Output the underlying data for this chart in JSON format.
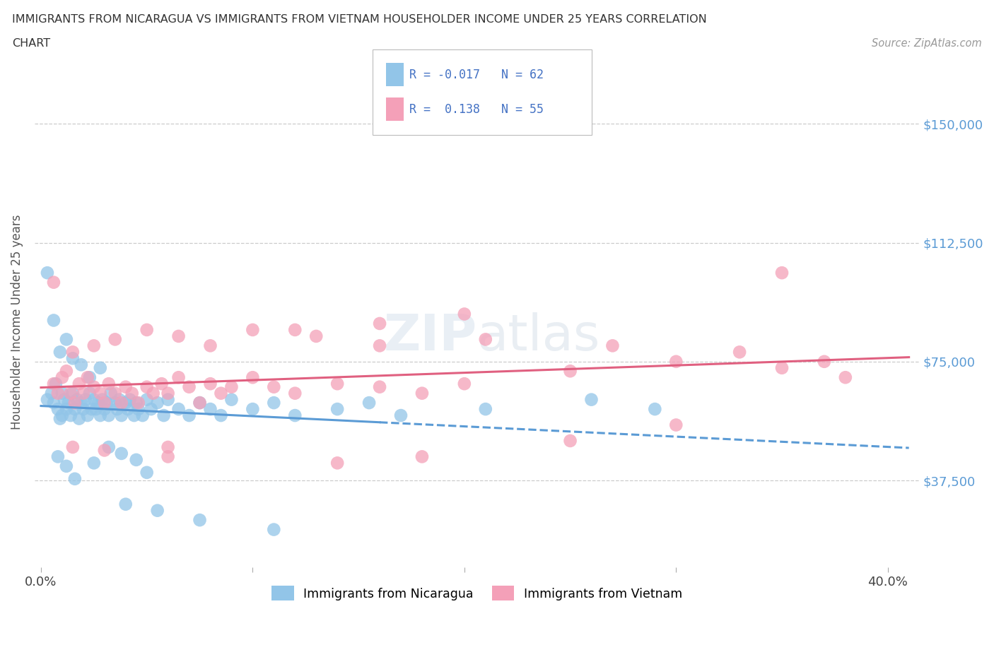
{
  "title_line1": "IMMIGRANTS FROM NICARAGUA VS IMMIGRANTS FROM VIETNAM HOUSEHOLDER INCOME UNDER 25 YEARS CORRELATION",
  "title_line2": "CHART",
  "source_text": "Source: ZipAtlas.com",
  "ylabel": "Householder Income Under 25 years",
  "xlim": [
    -0.003,
    0.415
  ],
  "ylim": [
    10000,
    165000
  ],
  "y_ticks": [
    37500,
    75000,
    112500,
    150000
  ],
  "y_tick_labels": [
    "$37,500",
    "$75,000",
    "$112,500",
    "$150,000"
  ],
  "x_ticks": [
    0.0,
    0.1,
    0.2,
    0.3,
    0.4
  ],
  "x_tick_labels": [
    "0.0%",
    "",
    "",
    "",
    "40.0%"
  ],
  "nicaragua_color": "#92C5E8",
  "vietnam_color": "#F4A0B8",
  "trendline_nicaragua_color": "#5B9BD5",
  "trendline_vietnam_color": "#E06080",
  "nicaragua_x": [
    0.003,
    0.005,
    0.006,
    0.007,
    0.008,
    0.009,
    0.01,
    0.01,
    0.011,
    0.012,
    0.013,
    0.014,
    0.015,
    0.016,
    0.017,
    0.018,
    0.019,
    0.02,
    0.021,
    0.022,
    0.023,
    0.024,
    0.025,
    0.026,
    0.027,
    0.028,
    0.029,
    0.03,
    0.031,
    0.032,
    0.033,
    0.035,
    0.036,
    0.037,
    0.038,
    0.04,
    0.041,
    0.042,
    0.044,
    0.045,
    0.046,
    0.048,
    0.05,
    0.052,
    0.055,
    0.058,
    0.06,
    0.065,
    0.07,
    0.075,
    0.08,
    0.085,
    0.09,
    0.1,
    0.11,
    0.12,
    0.14,
    0.155,
    0.17,
    0.21,
    0.26,
    0.29
  ],
  "nicaragua_y": [
    63000,
    65000,
    62000,
    68000,
    60000,
    57000,
    65000,
    58000,
    63000,
    60000,
    62000,
    58000,
    65000,
    60000,
    63000,
    57000,
    62000,
    60000,
    63000,
    58000,
    65000,
    60000,
    63000,
    60000,
    62000,
    58000,
    63000,
    60000,
    62000,
    58000,
    65000,
    62000,
    60000,
    63000,
    58000,
    62000,
    60000,
    63000,
    58000,
    62000,
    60000,
    58000,
    63000,
    60000,
    62000,
    58000,
    63000,
    60000,
    58000,
    62000,
    60000,
    58000,
    63000,
    60000,
    62000,
    58000,
    60000,
    62000,
    58000,
    60000,
    63000,
    60000
  ],
  "nicaragua_y_outliers": [
    103000,
    88000,
    78000,
    82000,
    76000,
    74000,
    70000,
    73000,
    45000,
    42000,
    38000,
    30000,
    28000,
    25000,
    22000,
    43000,
    48000,
    46000,
    44000,
    40000
  ],
  "nicaragua_x_outliers": [
    0.003,
    0.006,
    0.009,
    0.012,
    0.015,
    0.019,
    0.023,
    0.028,
    0.008,
    0.012,
    0.016,
    0.04,
    0.055,
    0.075,
    0.11,
    0.025,
    0.032,
    0.038,
    0.045,
    0.05
  ],
  "vietnam_x": [
    0.006,
    0.008,
    0.01,
    0.012,
    0.014,
    0.016,
    0.018,
    0.02,
    0.022,
    0.025,
    0.028,
    0.03,
    0.032,
    0.035,
    0.038,
    0.04,
    0.043,
    0.046,
    0.05,
    0.053,
    0.057,
    0.06,
    0.065,
    0.07,
    0.075,
    0.08,
    0.085,
    0.09,
    0.1,
    0.11,
    0.12,
    0.14,
    0.16,
    0.18,
    0.2,
    0.25,
    0.3,
    0.35,
    0.38,
    0.015,
    0.025,
    0.035,
    0.05,
    0.065,
    0.08,
    0.1,
    0.13,
    0.16,
    0.21,
    0.27,
    0.33,
    0.37,
    0.015,
    0.03,
    0.06
  ],
  "vietnam_y": [
    68000,
    65000,
    70000,
    72000,
    65000,
    62000,
    68000,
    65000,
    70000,
    67000,
    65000,
    62000,
    68000,
    65000,
    62000,
    67000,
    65000,
    62000,
    67000,
    65000,
    68000,
    65000,
    70000,
    67000,
    62000,
    68000,
    65000,
    67000,
    70000,
    67000,
    65000,
    68000,
    67000,
    65000,
    68000,
    72000,
    75000,
    73000,
    70000,
    78000,
    80000,
    82000,
    85000,
    83000,
    80000,
    85000,
    83000,
    80000,
    82000,
    80000,
    78000,
    75000,
    48000,
    47000,
    45000
  ],
  "vietnam_y_outliers": [
    103000,
    85000,
    87000,
    90000,
    100000,
    55000,
    50000,
    45000,
    43000,
    48000
  ],
  "vietnam_x_outliers": [
    0.35,
    0.12,
    0.16,
    0.2,
    0.006,
    0.3,
    0.25,
    0.18,
    0.14,
    0.06
  ],
  "watermark_text": "ZIPatlas",
  "legend_text1": "R = -0.017   N = 62",
  "legend_text2": "R =  0.138   N = 55"
}
